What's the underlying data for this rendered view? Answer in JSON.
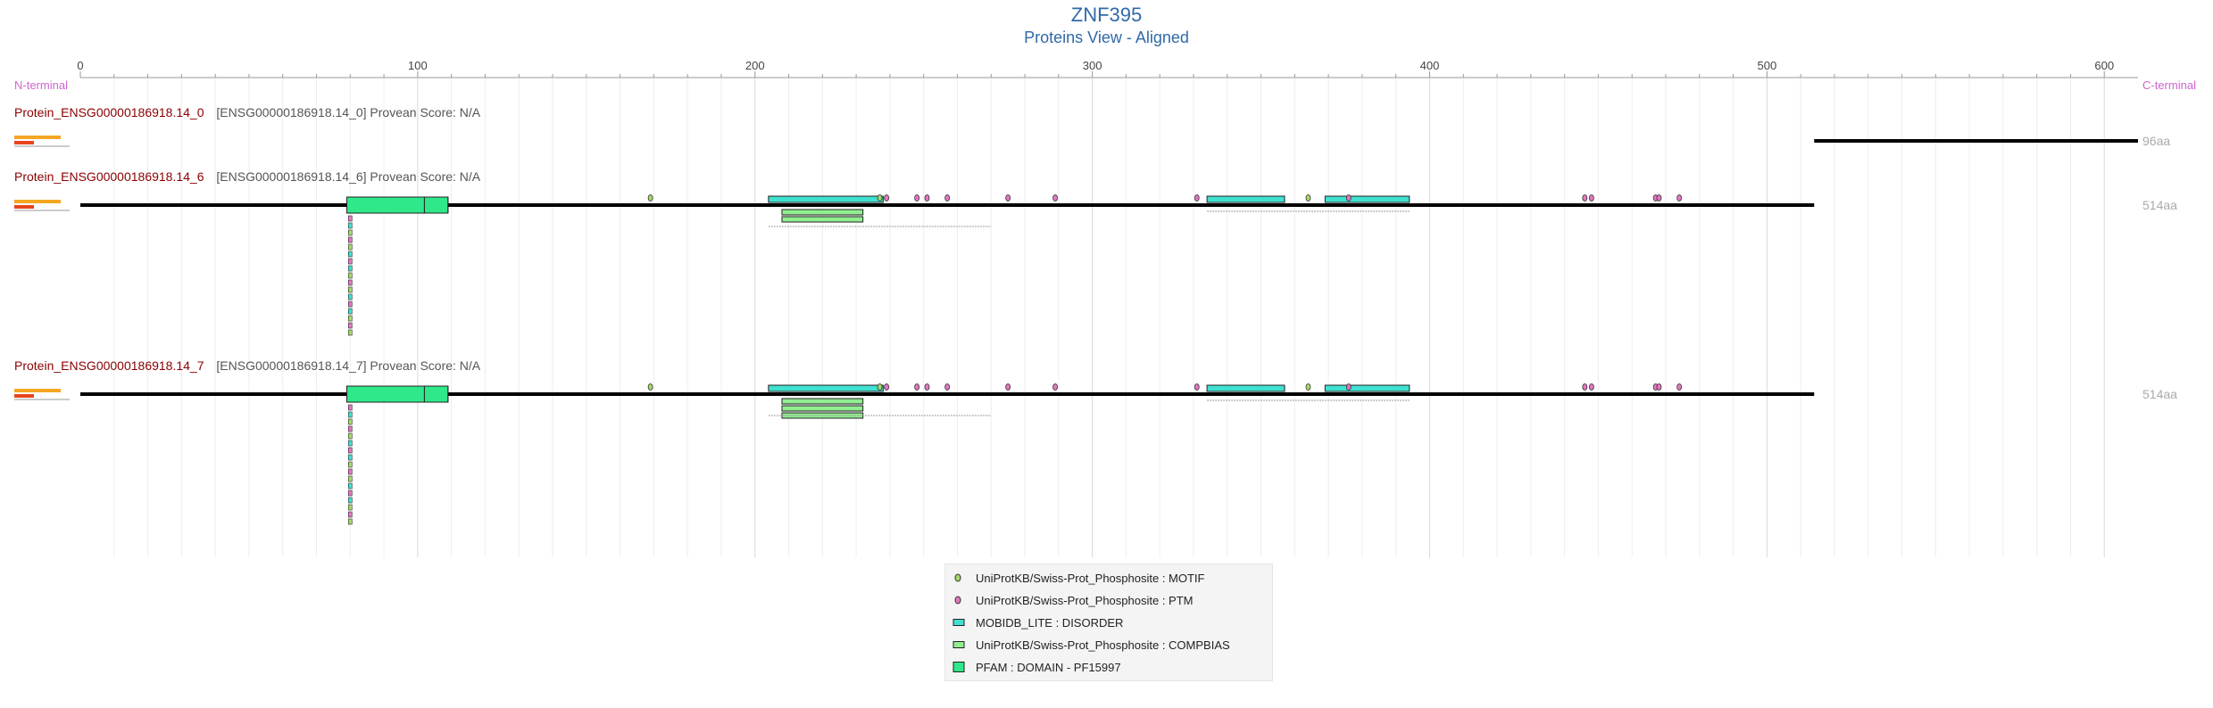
{
  "header": {
    "title": "ZNF395",
    "subtitle": "Proteins View - Aligned"
  },
  "axis": {
    "n_label": "N-terminal",
    "c_label": "C-terminal",
    "ticks": [
      "0",
      "100",
      "200",
      "300",
      "400",
      "500",
      "600"
    ],
    "max": 610
  },
  "colors": {
    "motif": "#a6d96a",
    "ptm": "#e377c2",
    "disorder": "#40e0d0",
    "compbias": "#90ee90",
    "domain": "#2ee88a",
    "protein_name": "#8b0000",
    "sub_text": "#555555",
    "axis_label": "#cc66cc"
  },
  "chart_data": {
    "type": "protein-domain-map",
    "proteins": [
      {
        "name": "Protein_ENSG00000186918.14_0",
        "info": "[ENSG00000186918.14_0] Provean Score: N/A",
        "length_label": "96aa",
        "start": 514,
        "end": 610,
        "features": []
      },
      {
        "name": "Protein_ENSG00000186918.14_6",
        "info": "[ENSG00000186918.14_6] Provean Score: N/A",
        "length_label": "514aa",
        "start": 0,
        "end": 514,
        "features": [
          {
            "type": "domain",
            "start": 79,
            "end": 102
          },
          {
            "type": "domain",
            "start": 102,
            "end": 109
          },
          {
            "type": "disorder",
            "start": 204,
            "end": 238
          },
          {
            "type": "disorder",
            "start": 334,
            "end": 357
          },
          {
            "type": "disorder",
            "start": 369,
            "end": 394
          },
          {
            "type": "compbias",
            "start": 208,
            "end": 232
          },
          {
            "type": "compbias",
            "start": 208,
            "end": 232
          },
          {
            "type": "motif",
            "pos": 169
          },
          {
            "type": "motif",
            "pos": 237
          },
          {
            "type": "motif",
            "pos": 364
          },
          {
            "type": "ptm",
            "pos": 248
          },
          {
            "type": "ptm",
            "pos": 251
          },
          {
            "type": "ptm",
            "pos": 257
          },
          {
            "type": "ptm",
            "pos": 275
          },
          {
            "type": "ptm",
            "pos": 289
          },
          {
            "type": "ptm",
            "pos": 331
          },
          {
            "type": "ptm",
            "pos": 239
          },
          {
            "type": "ptm",
            "pos": 376
          },
          {
            "type": "ptm",
            "pos": 446
          },
          {
            "type": "ptm",
            "pos": 448
          },
          {
            "type": "ptm",
            "pos": 467
          },
          {
            "type": "ptm",
            "pos": 468
          },
          {
            "type": "ptm",
            "pos": 474
          }
        ]
      },
      {
        "name": "Protein_ENSG00000186918.14_7",
        "info": "[ENSG00000186918.14_7] Provean Score: N/A",
        "length_label": "514aa",
        "start": 0,
        "end": 514,
        "features": [
          {
            "type": "domain",
            "start": 79,
            "end": 102
          },
          {
            "type": "domain",
            "start": 102,
            "end": 109
          },
          {
            "type": "disorder",
            "start": 204,
            "end": 238
          },
          {
            "type": "disorder",
            "start": 334,
            "end": 357
          },
          {
            "type": "disorder",
            "start": 369,
            "end": 394
          },
          {
            "type": "compbias",
            "start": 208,
            "end": 232
          },
          {
            "type": "compbias",
            "start": 208,
            "end": 232
          },
          {
            "type": "compbias",
            "start": 208,
            "end": 232
          },
          {
            "type": "motif",
            "pos": 169
          },
          {
            "type": "motif",
            "pos": 237
          },
          {
            "type": "motif",
            "pos": 364
          },
          {
            "type": "ptm",
            "pos": 248
          },
          {
            "type": "ptm",
            "pos": 251
          },
          {
            "type": "ptm",
            "pos": 257
          },
          {
            "type": "ptm",
            "pos": 275
          },
          {
            "type": "ptm",
            "pos": 289
          },
          {
            "type": "ptm",
            "pos": 331
          },
          {
            "type": "ptm",
            "pos": 239
          },
          {
            "type": "ptm",
            "pos": 376
          },
          {
            "type": "ptm",
            "pos": 446
          },
          {
            "type": "ptm",
            "pos": 448
          },
          {
            "type": "ptm",
            "pos": 467
          },
          {
            "type": "ptm",
            "pos": 468
          },
          {
            "type": "ptm",
            "pos": 474
          }
        ]
      }
    ]
  },
  "legend": {
    "items": [
      {
        "label": "UniProtKB/Swiss-Prot_Phosphosite : MOTIF",
        "kind": "motif"
      },
      {
        "label": "UniProtKB/Swiss-Prot_Phosphosite : PTM",
        "kind": "ptm"
      },
      {
        "label": "MOBIDB_LITE : DISORDER",
        "kind": "disorder"
      },
      {
        "label": "UniProtKB/Swiss-Prot_Phosphosite : COMPBIAS",
        "kind": "compbias"
      },
      {
        "label": "PFAM : DOMAIN - PF15997",
        "kind": "domain"
      }
    ]
  }
}
